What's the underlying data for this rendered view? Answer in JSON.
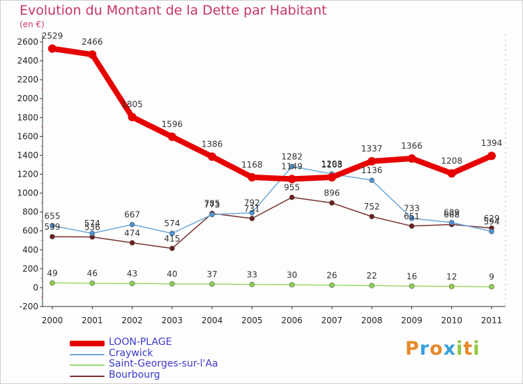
{
  "header": {
    "title": "Evolution du Montant de la Dette par Habitant",
    "unit": "(en €)"
  },
  "logo": {
    "text": "Proxiti",
    "letters": [
      {
        "char": "P",
        "color": "#e8892b"
      },
      {
        "char": "r",
        "color": "#3aa0dd"
      },
      {
        "char": "o",
        "color": "#e8892b"
      },
      {
        "char": "x",
        "color": "#3aa0dd"
      },
      {
        "char": "i",
        "color": "#8dc63f"
      },
      {
        "char": "t",
        "color": "#e8892b"
      },
      {
        "char": "i",
        "color": "#8dc63f"
      }
    ]
  },
  "chart_data": {
    "type": "line",
    "title": "Evolution du Montant de la Dette par Habitant",
    "ylabel": "(en €)",
    "x": [
      "2000",
      "2001",
      "2002",
      "2003",
      "2004",
      "2005",
      "2006",
      "2007",
      "2008",
      "2009",
      "2010",
      "2011"
    ],
    "ylim": [
      -200,
      2600
    ],
    "yticks": [
      -200,
      0,
      200,
      400,
      600,
      800,
      1000,
      1200,
      1400,
      1600,
      1800,
      2000,
      2200,
      2400,
      2600
    ],
    "grid": false,
    "legend": "bottom-left",
    "series": [
      {
        "name": "LOON-PLAGE",
        "color": "#e60000",
        "point_color": "#e60000",
        "values": [
          2529,
          2466,
          1805,
          1596,
          1386,
          1168,
          1149,
          1168,
          1337,
          1366,
          1208,
          1394
        ]
      },
      {
        "name": "Craywick",
        "color": "#6fa8d8",
        "point_color": "#4f93d3",
        "values": [
          655,
          574,
          667,
          574,
          773,
          792,
          1282,
          1203,
          1136,
          733,
          689,
          594
        ]
      },
      {
        "name": "Saint-Georges-sur-l'Aa",
        "color": "#9ad86a",
        "point_color": "#8fd14f",
        "values": [
          49,
          46,
          43,
          40,
          37,
          33,
          30,
          26,
          22,
          16,
          12,
          9
        ]
      },
      {
        "name": "Bourbourg",
        "color": "#7a3030",
        "point_color": "#6b1f1f",
        "values": [
          539,
          536,
          474,
          415,
          785,
          731,
          955,
          896,
          752,
          651,
          668,
          629
        ]
      }
    ]
  }
}
